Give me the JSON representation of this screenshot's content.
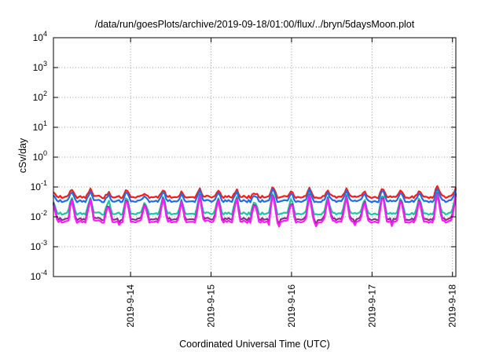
{
  "chart_data": {
    "type": "line",
    "title": "/data/run/goesPlots/archive/2019-09-18/01:00/flux/../bryn/5daysMoon.plot",
    "xlabel": "Coordinated Universal Time (UTC)",
    "ylabel": "cSv/day",
    "yscale": "log",
    "ylim": [
      0.0001,
      10000
    ],
    "ytick_exponents": [
      "4",
      "3",
      "2",
      "1",
      "0",
      "-1",
      "-2",
      "-3",
      "-4"
    ],
    "xlim": [
      "2019-09-13T01:00",
      "2019-09-18T01:00"
    ],
    "xtick_labels": [
      "2019-9-14",
      "2019-9-15",
      "2019-9-16",
      "2019-9-17",
      "2019-9-18"
    ],
    "grid": true,
    "series": [
      {
        "color": "#ff1a1a",
        "baseline": 0.047,
        "spikes": [
          0.063,
          0.09,
          0.085,
          0.07,
          0.08,
          0.065,
          0.09,
          0.065,
          0.095,
          0.075,
          0.085,
          0.07,
          0.1,
          0.075,
          0.09,
          0.08,
          0.085,
          0.07,
          0.1,
          0.075,
          0.08,
          0.12,
          0.09
        ]
      },
      {
        "color": "#1e6ee8",
        "baseline": 0.034,
        "spikes": [
          0.05,
          0.075,
          0.07,
          0.06,
          0.07,
          0.055,
          0.08,
          0.055,
          0.085,
          0.065,
          0.075,
          0.06,
          0.09,
          0.065,
          0.08,
          0.07,
          0.075,
          0.06,
          0.09,
          0.065,
          0.07,
          0.1,
          0.08
        ]
      },
      {
        "color": "#19c7a3",
        "baseline": 0.013,
        "spikes": [
          0.03,
          0.05,
          0.045,
          0.04,
          0.05,
          0.035,
          0.06,
          0.035,
          0.065,
          0.045,
          0.055,
          0.04,
          0.07,
          0.045,
          0.06,
          0.05,
          0.055,
          0.04,
          0.07,
          0.045,
          0.05,
          0.08,
          0.06
        ]
      },
      {
        "color": "#8c2e8c",
        "baseline": 0.0085,
        "spikes": [
          0.028,
          0.045,
          0.042,
          0.036,
          0.045,
          0.032,
          0.055,
          0.032,
          0.06,
          0.042,
          0.05,
          0.036,
          0.065,
          0.042,
          0.055,
          0.045,
          0.05,
          0.036,
          0.065,
          0.042,
          0.045,
          0.075,
          0.055
        ]
      },
      {
        "color": "#ff1aff",
        "baseline": 0.007,
        "spikes": [
          0.025,
          0.042,
          0.04,
          0.034,
          0.042,
          0.03,
          0.052,
          0.03,
          0.058,
          0.04,
          0.048,
          0.034,
          0.062,
          0.04,
          0.052,
          0.042,
          0.048,
          0.034,
          0.062,
          0.04,
          0.042,
          0.07,
          0.052
        ]
      }
    ]
  }
}
